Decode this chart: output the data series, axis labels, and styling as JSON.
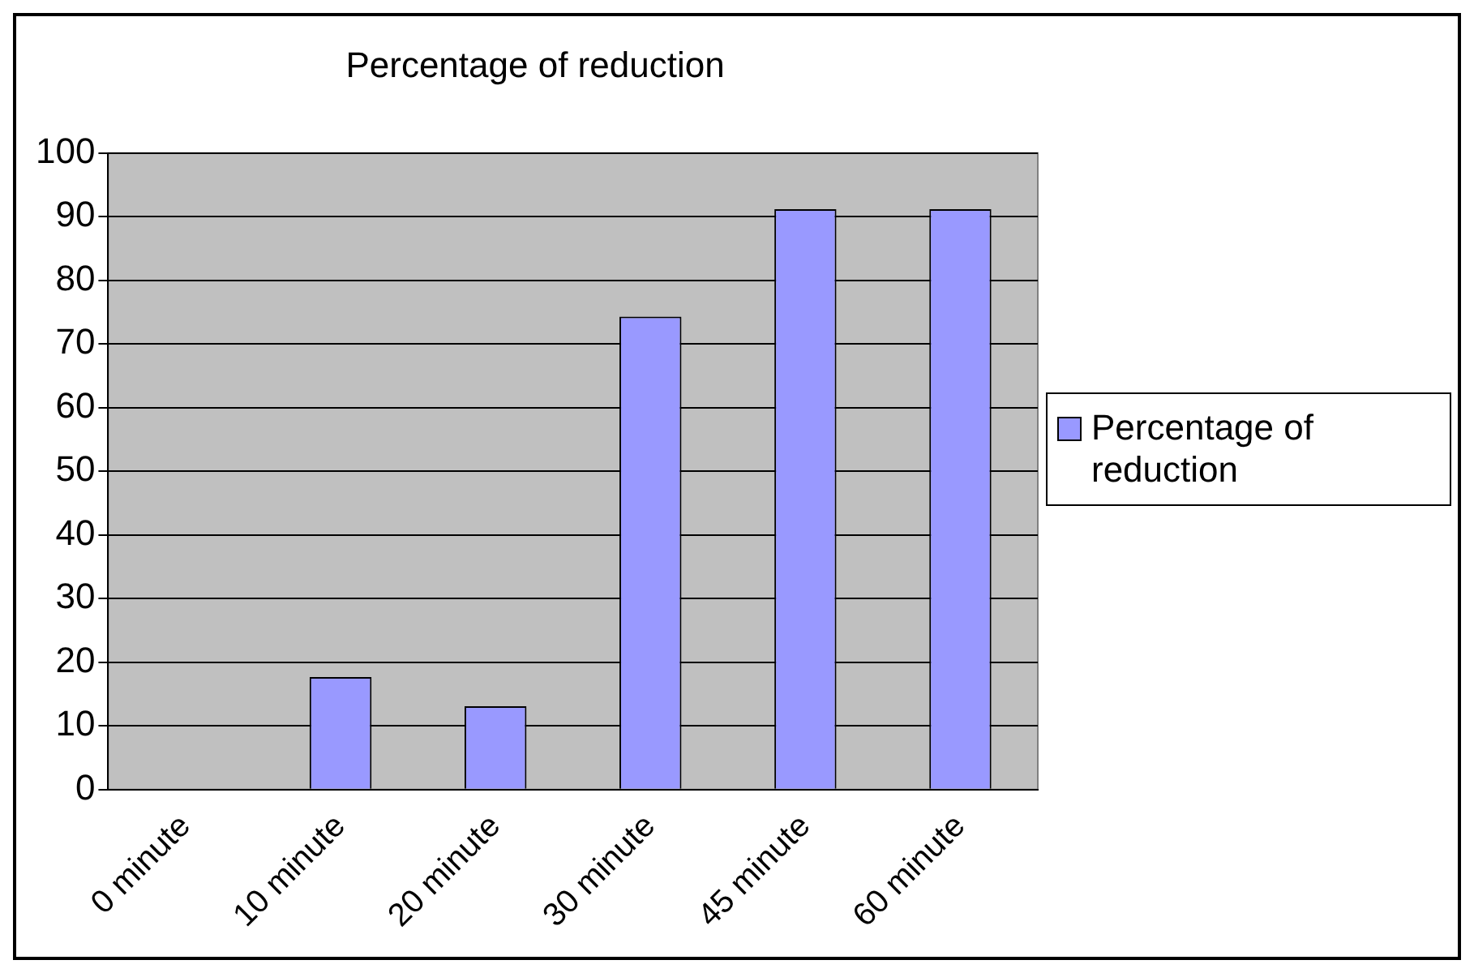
{
  "chart_data": {
    "type": "bar",
    "title": "Percentage of reduction",
    "categories": [
      "0 minute",
      "10 minute",
      "20 minute",
      "30 minute",
      "45 minute",
      "60 minute"
    ],
    "series": [
      {
        "name": "Percentage of reduction",
        "color": "#9999ff",
        "values": [
          0,
          17.7,
          13.1,
          74.3,
          91.2,
          91.2
        ]
      }
    ],
    "ylim": [
      0,
      100
    ],
    "yticks": [
      0,
      10,
      20,
      30,
      40,
      50,
      60,
      70,
      80,
      90,
      100
    ],
    "grid": "y",
    "legend": "right"
  }
}
